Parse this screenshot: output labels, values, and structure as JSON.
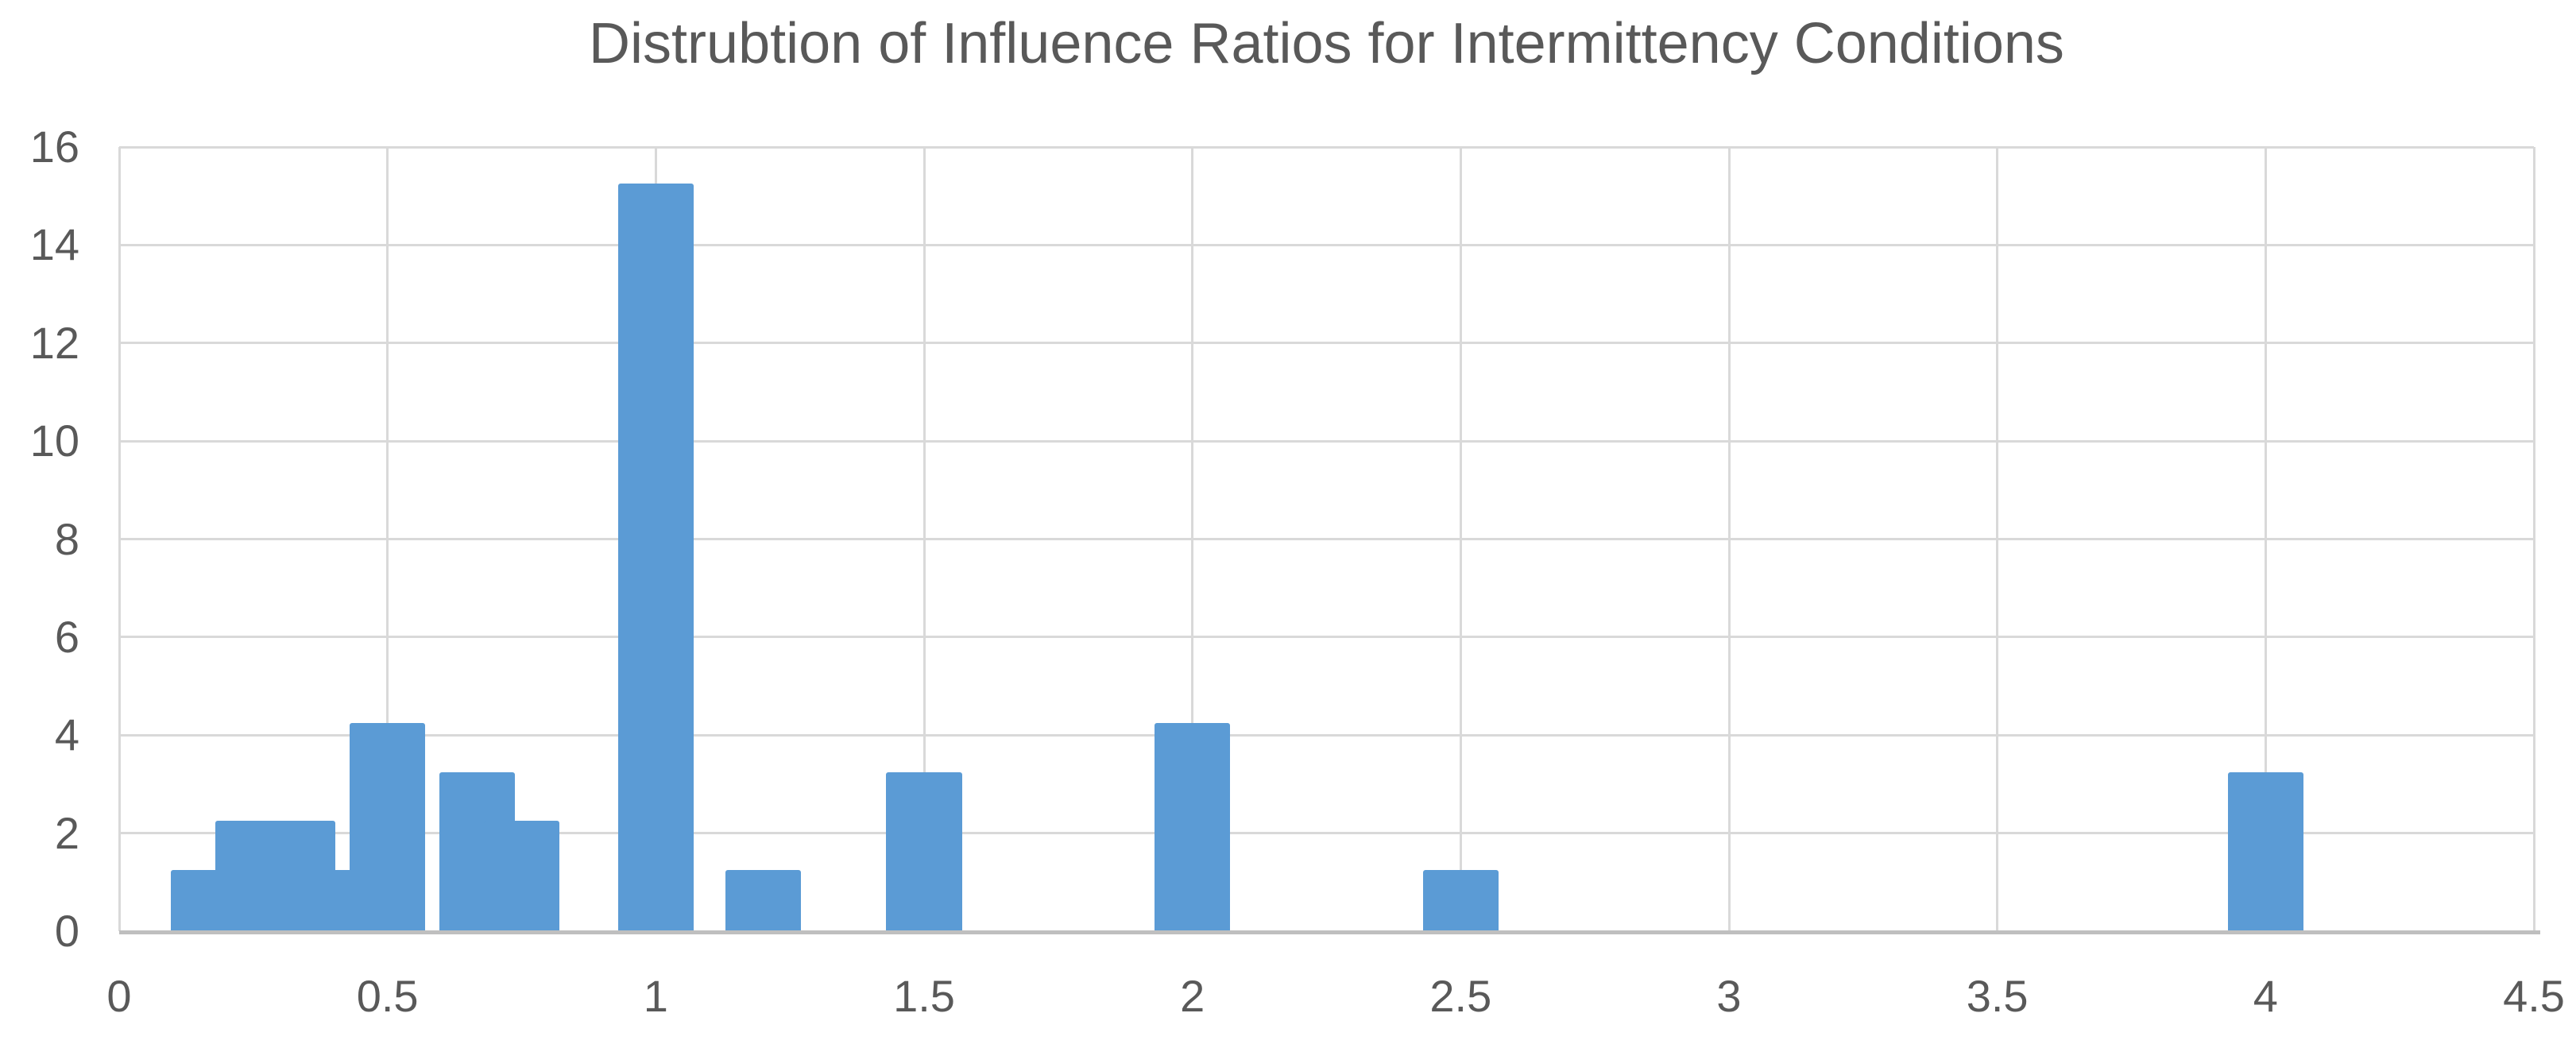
{
  "chart_data": {
    "type": "bar",
    "subtype": "histogram",
    "title": "Distrubtion of Influence Ratios for Intermittency Conditions",
    "xlabel": "",
    "ylabel": "",
    "x": [
      0.167,
      0.25,
      0.333,
      0.4,
      0.5,
      0.667,
      0.75,
      1,
      1.2,
      1.5,
      2,
      2.5,
      4
    ],
    "values": [
      1.25,
      2.25,
      2.25,
      1.25,
      4.25,
      3.25,
      2.25,
      15.25,
      1.25,
      3.25,
      4.25,
      1.25,
      3.25
    ],
    "bar_width_x": 0.141,
    "xlim": [
      0,
      4.5
    ],
    "ylim": [
      0,
      16
    ],
    "x_tick_values": [
      0,
      0.5,
      1,
      1.5,
      2,
      2.5,
      3,
      3.5,
      4,
      4.5
    ],
    "x_tick_labels": [
      "0",
      "0.5",
      "1",
      "1.5",
      "2",
      "2.5",
      "3",
      "3.5",
      "4",
      "4.5"
    ],
    "y_tick_values": [
      0,
      2,
      4,
      6,
      8,
      10,
      12,
      14,
      16
    ],
    "y_tick_labels": [
      "0",
      "2",
      "4",
      "6",
      "8",
      "10",
      "12",
      "14",
      "16"
    ],
    "grid": true,
    "legend": false,
    "colors": {
      "bar": "#5B9BD5",
      "gridline": "#D9D9D9",
      "axis_line": "#BFBFBF",
      "tick_label": "#595959",
      "title": "#595959",
      "background": "#FFFFFF"
    }
  }
}
